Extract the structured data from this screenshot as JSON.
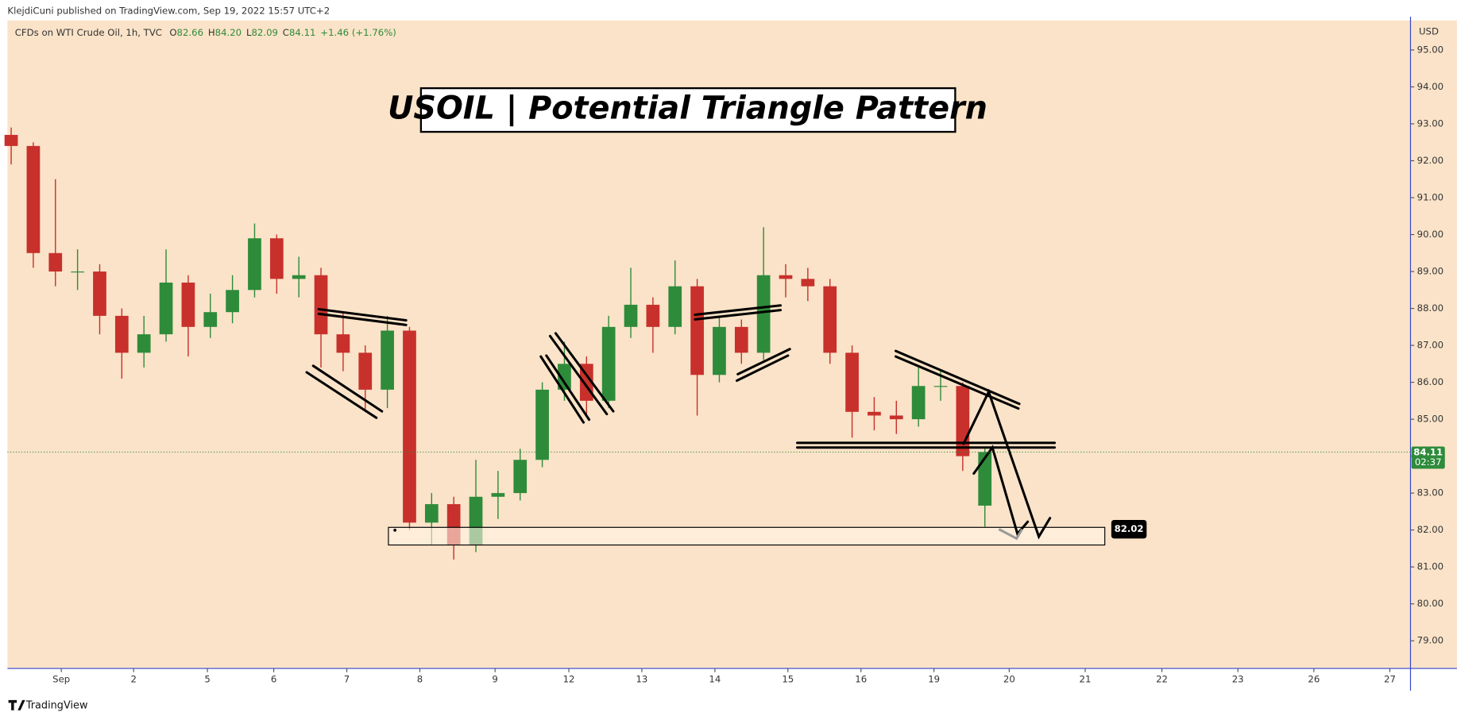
{
  "header": {
    "byline": "KlejdiCuni published on TradingView.com, Sep 19, 2022 15:57 UTC+2",
    "brand": "TradingView"
  },
  "chart_data": {
    "type": "candlestick",
    "title": "USOIL | Potential Triangle Pattern",
    "symbol": "CFDs on WTI Crude Oil, 1h, TVC",
    "ohlc_legend": [
      {
        "label": "O",
        "value": "82.66"
      },
      {
        "label": "H",
        "value": "84.20"
      },
      {
        "label": "L",
        "value": "82.09"
      },
      {
        "label": "C",
        "value": "84.11"
      }
    ],
    "change": "+1.46 (+1.76%)",
    "currency": "USD",
    "up_color": "#2e8b3a",
    "down_color": "#c8302c",
    "x": [
      -0.68,
      -0.38,
      -0.08,
      0.22,
      0.52,
      0.82,
      1.12,
      1.42,
      1.72,
      2.02,
      2.32,
      2.62,
      2.92,
      3.22,
      3.52,
      3.82,
      4.12,
      4.42,
      4.72,
      5.02,
      5.32,
      5.62,
      5.92,
      6.22,
      6.52,
      6.82,
      7.12,
      7.42,
      7.72,
      8.02,
      8.32,
      8.62,
      8.92,
      9.22,
      9.52,
      9.82,
      10.12,
      10.42,
      10.72,
      11.02,
      11.32,
      11.62,
      11.92,
      12.22,
      12.52
    ],
    "open": [
      92.7,
      92.4,
      89.5,
      89.0,
      89.0,
      87.8,
      86.8,
      87.3,
      88.7,
      87.5,
      87.9,
      88.5,
      89.9,
      88.8,
      88.9,
      87.3,
      86.8,
      85.8,
      87.4,
      82.2,
      82.7,
      81.6,
      82.9,
      83.0,
      83.9,
      85.8,
      86.5,
      85.5,
      87.5,
      88.1,
      87.5,
      88.6,
      86.2,
      87.5,
      86.8,
      88.9,
      88.8,
      88.6,
      86.8,
      85.2,
      85.1,
      85.0,
      85.9,
      85.9,
      82.66
    ],
    "high": [
      92.9,
      92.5,
      91.5,
      89.6,
      89.2,
      88.0,
      87.8,
      89.6,
      88.9,
      88.4,
      88.9,
      90.3,
      90.0,
      89.4,
      89.1,
      87.9,
      87.0,
      87.8,
      87.5,
      83.0,
      82.9,
      83.9,
      83.6,
      84.2,
      86.0,
      87.1,
      86.7,
      87.8,
      89.1,
      88.3,
      89.3,
      88.8,
      87.8,
      87.7,
      90.2,
      89.2,
      89.1,
      88.8,
      87.0,
      85.6,
      85.5,
      86.4,
      86.3,
      86.0,
      84.2
    ],
    "low": [
      91.9,
      89.1,
      88.6,
      88.5,
      87.3,
      86.1,
      86.4,
      87.1,
      86.7,
      87.2,
      87.6,
      88.3,
      88.4,
      88.3,
      86.4,
      86.3,
      85.2,
      85.3,
      82.0,
      81.6,
      81.2,
      81.4,
      82.3,
      82.8,
      83.7,
      85.5,
      85.1,
      85.3,
      87.2,
      86.8,
      87.3,
      85.1,
      86.0,
      86.5,
      86.6,
      88.3,
      88.2,
      86.5,
      84.5,
      84.7,
      84.6,
      84.8,
      85.5,
      83.6,
      82.09
    ],
    "close": [
      92.4,
      89.5,
      89.0,
      89.0,
      87.8,
      86.8,
      87.3,
      88.7,
      87.5,
      87.9,
      88.5,
      89.9,
      88.8,
      88.9,
      87.3,
      86.8,
      85.8,
      87.4,
      82.2,
      82.7,
      81.6,
      82.9,
      83.0,
      83.9,
      85.8,
      86.5,
      85.5,
      87.5,
      88.1,
      87.5,
      88.6,
      86.2,
      87.5,
      86.8,
      88.9,
      88.8,
      88.6,
      86.8,
      85.2,
      85.1,
      85.0,
      85.9,
      85.9,
      84.0,
      84.11
    ],
    "xlim": [
      -0.73,
      18.29
    ],
    "xticks": [
      {
        "value": 0,
        "label": "Sep"
      },
      {
        "value": 0.98,
        "label": "2"
      },
      {
        "value": 1.98,
        "label": "5"
      },
      {
        "value": 2.88,
        "label": "6"
      },
      {
        "value": 3.87,
        "label": "7"
      },
      {
        "value": 4.86,
        "label": "8"
      },
      {
        "value": 5.88,
        "label": "9"
      },
      {
        "value": 6.88,
        "label": "12"
      },
      {
        "value": 7.87,
        "label": "13"
      },
      {
        "value": 8.86,
        "label": "14"
      },
      {
        "value": 9.85,
        "label": "15"
      },
      {
        "value": 10.84,
        "label": "16"
      },
      {
        "value": 11.83,
        "label": "19"
      },
      {
        "value": 12.85,
        "label": "20"
      },
      {
        "value": 13.88,
        "label": "21"
      },
      {
        "value": 14.92,
        "label": "22"
      },
      {
        "value": 15.95,
        "label": "23"
      },
      {
        "value": 16.98,
        "label": "26"
      },
      {
        "value": 18.01,
        "label": "27"
      }
    ],
    "ylim": [
      78.25,
      95.8
    ],
    "yticks": [
      {
        "value": 79,
        "label": "79.00"
      },
      {
        "value": 80,
        "label": "80.00"
      },
      {
        "value": 81,
        "label": "81.00"
      },
      {
        "value": 82,
        "label": "82.00"
      },
      {
        "value": 83,
        "label": "83.00"
      },
      {
        "value": 84,
        "label": "84.00"
      },
      {
        "value": 85,
        "label": "85.00"
      },
      {
        "value": 86,
        "label": "86.00"
      },
      {
        "value": 87,
        "label": "87.00"
      },
      {
        "value": 88,
        "label": "88.00"
      },
      {
        "value": 89,
        "label": "89.00"
      },
      {
        "value": 90,
        "label": "90.00"
      },
      {
        "value": 91,
        "label": "91.00"
      },
      {
        "value": 92,
        "label": "92.00"
      },
      {
        "value": 93,
        "label": "93.00"
      },
      {
        "value": 94,
        "label": "94.00"
      },
      {
        "value": 95,
        "label": "95.00"
      }
    ],
    "last_price": {
      "value": 84.11,
      "label": "84.11",
      "countdown": "02:37",
      "color": "#2e8b3a"
    },
    "zone_price": {
      "value": 82.02,
      "label": "82.02"
    }
  }
}
